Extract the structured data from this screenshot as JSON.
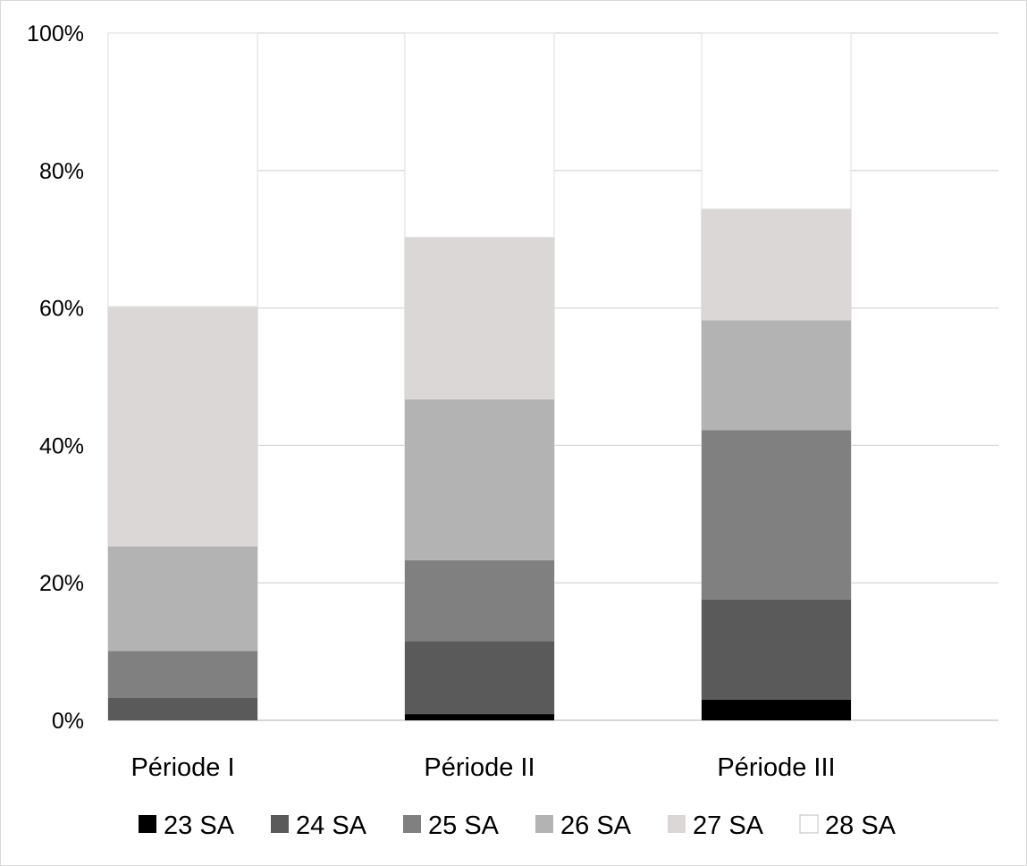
{
  "chart_data": {
    "type": "bar",
    "stacked": true,
    "percent": true,
    "categories": [
      "Période I",
      "Période II",
      "Période III"
    ],
    "series": [
      {
        "name": "23 SA",
        "color": "#000000",
        "values": [
          0.0,
          0.9,
          3.0
        ]
      },
      {
        "name": "24 SA",
        "color": "#5a5a5a",
        "values": [
          3.3,
          10.6,
          14.6
        ]
      },
      {
        "name": "25 SA",
        "color": "#808080",
        "values": [
          6.8,
          11.8,
          24.6
        ]
      },
      {
        "name": "26 SA",
        "color": "#b3b3b3",
        "values": [
          15.2,
          23.4,
          16.0
        ]
      },
      {
        "name": "27 SA",
        "color": "#dbd7d7",
        "values": [
          34.9,
          23.6,
          16.2
        ]
      },
      {
        "name": "28 SA",
        "color": "#ffffff",
        "values": [
          39.8,
          29.7,
          25.6
        ]
      }
    ],
    "yticks": [
      "0%",
      "20%",
      "40%",
      "60%",
      "80%",
      "100%"
    ],
    "ylim": [
      0,
      100
    ],
    "grid": true,
    "legend": "bottom"
  }
}
